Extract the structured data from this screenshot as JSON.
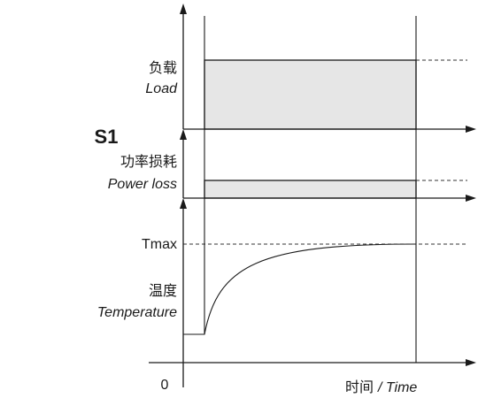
{
  "diagram": {
    "mode_label": "S1",
    "load": {
      "label_cn": "负载",
      "label_en": "Load"
    },
    "power_loss": {
      "label_cn": "功率损耗",
      "label_en": "Power loss"
    },
    "temperature": {
      "label_cn": "温度",
      "label_en": "Temperature",
      "max_label": "Tmax"
    },
    "origin_label": "0",
    "time_label_cn": "时间",
    "time_label_en": "/ Time"
  }
}
